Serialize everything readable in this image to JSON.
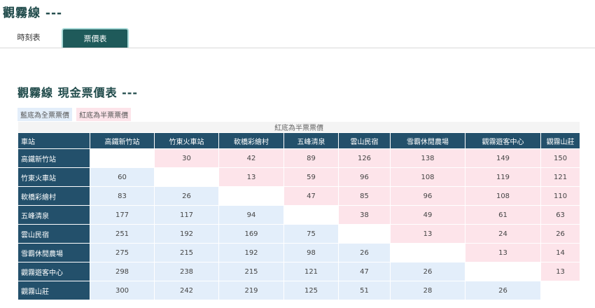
{
  "header": {
    "title": "觀霧線 ---"
  },
  "tabs": [
    "時刻表",
    "票價表"
  ],
  "section_title": "觀霧線 現金票價表 ---",
  "legend": [
    "藍底為全票票價",
    "紅底為半票票價"
  ],
  "table": {
    "caption": "紅底為半票票價",
    "corner": "車站",
    "columns": [
      "高鐵新竹站",
      "竹東火車站",
      "軟橋彩繪村",
      "五峰清泉",
      "雲山民宿",
      "雪霸休閒農場",
      "觀霧遊客中心",
      "觀霧山莊"
    ],
    "rows": [
      {
        "station": "高鐵新竹站",
        "fares": [
          null,
          30,
          42,
          89,
          126,
          138,
          149,
          150
        ]
      },
      {
        "station": "竹東火車站",
        "fares": [
          60,
          null,
          13,
          59,
          96,
          108,
          119,
          121
        ]
      },
      {
        "station": "軟橋彩繪村",
        "fares": [
          83,
          26,
          null,
          47,
          85,
          96,
          108,
          110
        ]
      },
      {
        "station": "五峰清泉",
        "fares": [
          177,
          117,
          94,
          null,
          38,
          49,
          61,
          63
        ]
      },
      {
        "station": "雲山民宿",
        "fares": [
          251,
          192,
          169,
          75,
          null,
          13,
          24,
          26
        ]
      },
      {
        "station": "雪霸休閒農場",
        "fares": [
          275,
          215,
          192,
          98,
          26,
          null,
          13,
          14
        ]
      },
      {
        "station": "觀霧遊客中心",
        "fares": [
          298,
          238,
          215,
          121,
          47,
          26,
          null,
          13
        ]
      },
      {
        "station": "觀霧山莊",
        "fares": [
          300,
          242,
          219,
          125,
          51,
          28,
          26,
          null
        ]
      }
    ]
  }
}
